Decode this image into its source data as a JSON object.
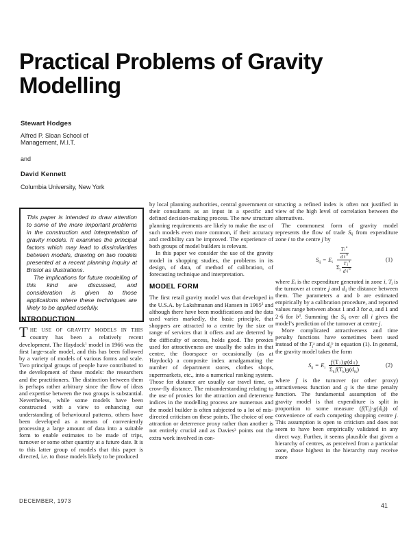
{
  "masthead": {
    "title_line1": "Practical Problems of Gravity",
    "title_line2": "Modelling"
  },
  "authors": {
    "author1_name": "Stewart Hodges",
    "author1_affil_line1": "Alfred P. Sloan School of",
    "author1_affil_line2": "Management, M.I.T.",
    "connector": "and",
    "author2_name": "David Kennett",
    "author2_affil": "Columbia University, New York"
  },
  "abstract": {
    "p1": "This paper is intended to draw attention to some of the more important problems in the construction and interpretation of gravity models. It examines the principal factors which may lead to dissimilarities between models, drawing on two models presented at a recent planning inquiry at Bristol as illustrations.",
    "p2": "The implications for future modelling of this kind are discussed, and consideration is given to those applications where these techniques are likely to be applied usefully."
  },
  "intro": {
    "heading": "INTRODUCTION",
    "dropcap": "T",
    "opening_caps": "HE USE OF GRAVITY MODELS IN THIS",
    "p1": [
      {
        "t": " country has been a relatively recent development. The Haydock"
      },
      {
        "t": "1",
        "s": "sup"
      },
      {
        "t": " model in 1966 was the first large-scale model, and this has been followed by a variety of models of various forms and scale. Two principal groups of people have contributed to the development of these models: the researchers and the practitioners. The distinction between them is perhaps rather arbitrary since the flow of ideas and expertise between the two groups is substantial. Nevertheless, while some models have been constructed with a view to enhancing our understanding of behavioural patterns, others have been developed as a means of conveniently processing a large amount of data into a suitable form to enable estimates to be made of trips, turnover or some other quantity at a future date. It is to this latter group of models that this paper is directed, i.e. to those models likely to be produced"
      }
    ]
  },
  "col2": {
    "p1": "by local planning authorities, central government or their consultants as an input in a specific and defined decision-making process. The new structure planning requirements are likely to make the use of such models even more common, if their accuracy and credibility can be improved. The experience of both groups of model builders is relevant.",
    "p2": "In this paper we consider the use of the gravity model in shopping studies, the problems in its design, of data, of method of calibration, of forecasting technique and interpretation.",
    "heading": "MODEL FORM",
    "p3": [
      {
        "t": "The first retail gravity model was that developed in the U.S.A. by Lakshmanan and Hansen in 1965"
      },
      {
        "t": "2",
        "s": "sup"
      },
      {
        "t": " and although there have been modifications and the data used varies markedly, the basic principle, that shoppers are attracted to a centre by the size or range of services that it offers and are deterred by the difficulty of access, holds good. The proxies used for attractiveness are usually the sales in that centre, the floorspace or occasionally (as at Haydock) a composite index amalgamating the number of department stores, clothes shops, supermarkets, etc., into a numerical ranking system. Those for distance are usually car travel time, or crow-fly distance. The misunderstanding relating to the use of proxies for the attraction and deterrence indices in the modelling process are numerous and the model builder is often subjected to a lot of mis-directed criticism on these points. The choice of one attraction or deterrence proxy rather than another is not entirely crucial and as Davies"
      },
      {
        "t": "3",
        "s": "sup"
      },
      {
        "t": " points out the extra work involved in con-"
      }
    ]
  },
  "col3": {
    "p1": "structing a refined index is often not justified in view of the high level of correlation between the alternatives.",
    "p2": [
      {
        "t": "The commonest form of gravity model represents the flow of trade "
      },
      {
        "t": "S",
        "s": "i"
      },
      {
        "t": "ij",
        "s": "sub"
      },
      {
        "t": " from expenditure zone "
      },
      {
        "t": "i",
        "s": "i"
      },
      {
        "t": " to the centre "
      },
      {
        "t": "j",
        "s": "i"
      },
      {
        "t": " by"
      }
    ],
    "eq1": {
      "lhs": [
        {
          "t": "S",
          "s": "i"
        },
        {
          "t": "ij",
          "s": "sub"
        }
      ],
      "equals": "=",
      "coef": [
        {
          "t": "E",
          "s": "i"
        },
        {
          "t": "i",
          "s": "sub"
        }
      ],
      "inner_num": [
        {
          "t": "T",
          "s": "i"
        },
        {
          "t": "j",
          "s": "sub"
        },
        {
          "t": "a",
          "s": "sup"
        }
      ],
      "inner_den": [
        {
          "t": "d",
          "s": "i"
        },
        {
          "t": "ij",
          "s": "sub"
        },
        {
          "t": "b",
          "s": "sup"
        }
      ],
      "sigma": [
        {
          "t": "Σ"
        },
        {
          "t": "j",
          "s": "sub"
        }
      ],
      "label": "(1)"
    },
    "p3": [
      {
        "t": "where "
      },
      {
        "t": "E",
        "s": "i"
      },
      {
        "t": "i",
        "s": "sub"
      },
      {
        "t": " is the expenditure generated in zone "
      },
      {
        "t": "i",
        "s": "i"
      },
      {
        "t": ", "
      },
      {
        "t": "T",
        "s": "i"
      },
      {
        "t": "j",
        "s": "sub"
      },
      {
        "t": " is the turnover at centre "
      },
      {
        "t": "j",
        "s": "i"
      },
      {
        "t": " and "
      },
      {
        "t": "d",
        "s": "i"
      },
      {
        "t": "ij",
        "s": "sub"
      },
      {
        "t": " the distance between them. The parameters "
      },
      {
        "t": "a",
        "s": "i"
      },
      {
        "t": " and "
      },
      {
        "t": "b",
        "s": "i"
      },
      {
        "t": " are estimated empirically by a calibration procedure, and reported values range between about 1 and 3 for "
      },
      {
        "t": "a",
        "s": "i"
      },
      {
        "t": ", and 1 and 2·6 for "
      },
      {
        "t": "b",
        "s": "i"
      },
      {
        "t": "4",
        "s": "sup"
      },
      {
        "t": ". Summing the "
      },
      {
        "t": "S",
        "s": "i"
      },
      {
        "t": "ij",
        "s": "sub"
      },
      {
        "t": " over all "
      },
      {
        "t": "i",
        "s": "i"
      },
      {
        "t": " gives the model’s prediction of the turnover at centre "
      },
      {
        "t": "j",
        "s": "i"
      },
      {
        "t": "."
      }
    ],
    "p4": [
      {
        "t": "More complicated attractiveness and time penalty functions have sometimes been used instead of the "
      },
      {
        "t": "T",
        "s": "i"
      },
      {
        "t": "j",
        "s": "sub"
      },
      {
        "t": "a",
        "s": "sup"
      },
      {
        "t": " and "
      },
      {
        "t": "d",
        "s": "i"
      },
      {
        "t": "ij",
        "s": "sub"
      },
      {
        "t": "b",
        "s": "sup"
      },
      {
        "t": " in equation (1). In general, the gravity model takes the form"
      }
    ],
    "eq2": {
      "lhs": [
        {
          "t": "S",
          "s": "i"
        },
        {
          "t": "ij",
          "s": "sub"
        }
      ],
      "equals": "=",
      "coef": [
        {
          "t": "E",
          "s": "i"
        },
        {
          "t": "i",
          "s": "sub"
        }
      ],
      "num": [
        {
          "t": "f",
          "s": "i"
        },
        {
          "t": "(T"
        },
        {
          "t": "j",
          "s": "sub"
        },
        {
          "t": ")"
        },
        {
          "t": "g",
          "s": "i"
        },
        {
          "t": "(d"
        },
        {
          "t": "ij",
          "s": "sub"
        },
        {
          "t": ")"
        }
      ],
      "sigma": [
        {
          "t": "Σ"
        },
        {
          "t": "k",
          "s": "sub"
        }
      ],
      "den": [
        {
          "t": "f",
          "s": "i"
        },
        {
          "t": "(T"
        },
        {
          "t": "k",
          "s": "sub"
        },
        {
          "t": ")"
        },
        {
          "t": "g",
          "s": "i"
        },
        {
          "t": "(d"
        },
        {
          "t": "ik",
          "s": "sub"
        },
        {
          "t": ")"
        }
      ],
      "label": "(2)"
    },
    "p5": [
      {
        "t": "where "
      },
      {
        "t": "f",
        "s": "i"
      },
      {
        "t": " is the turnover (or other proxy) attractiveness function and "
      },
      {
        "t": "g",
        "s": "i"
      },
      {
        "t": " is the time penalty function. The fundamental assumption of the gravity model is that expenditure is split in proportion to some measure ("
      },
      {
        "t": "f",
        "s": "i"
      },
      {
        "t": "(T"
      },
      {
        "t": "j",
        "s": "sub"
      },
      {
        "t": ")·"
      },
      {
        "t": "g",
        "s": "i"
      },
      {
        "t": "(d"
      },
      {
        "t": "ij",
        "s": "sub"
      },
      {
        "t": ")) of convenience of each competing shopping centre "
      },
      {
        "t": "j",
        "s": "i"
      },
      {
        "t": ". This assumption is open to criticism and does not seem to have been empirically validated in any direct way. Further, it seems plausible that given a hierarchy of centres, as perceived from a particular zone, those highest in the hierarchy may receive more"
      }
    ]
  },
  "footer": {
    "date": "DECEMBER, 1973",
    "page_number": "41"
  }
}
